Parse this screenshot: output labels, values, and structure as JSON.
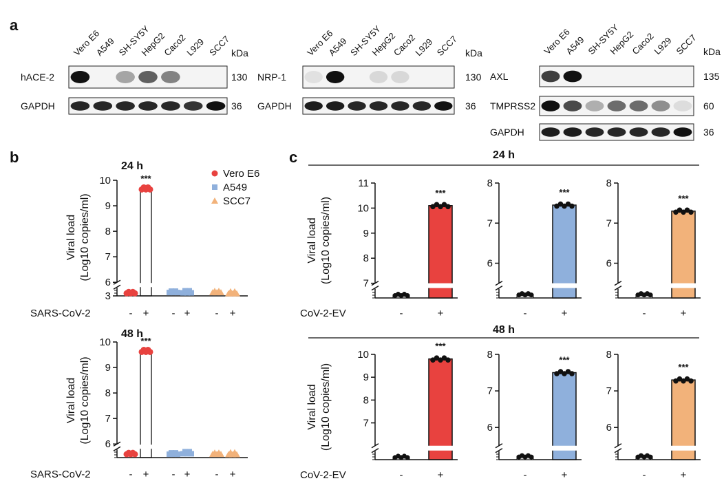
{
  "panels": {
    "a": "a",
    "b": "b",
    "c": "c"
  },
  "western_blots": [
    {
      "lanes": [
        "Vero E6",
        "A549",
        "SH-SY5Y",
        "HepG2",
        "Caco2",
        "L929",
        "SCC7"
      ],
      "kda_header": "kDa",
      "rows": [
        {
          "protein": "hACE-2",
          "kda": "130",
          "bands": [
            1.0,
            0.0,
            0.35,
            0.65,
            0.5,
            0.0,
            0.0
          ]
        },
        {
          "protein": "GAPDH",
          "kda": "36",
          "bands": [
            0.9,
            0.9,
            0.9,
            0.9,
            0.9,
            0.85,
            1.0
          ]
        }
      ]
    },
    {
      "lanes": [
        "Vero E6",
        "A549",
        "SH-SY5Y",
        "HepG2",
        "Caco2",
        "L929",
        "SCC7"
      ],
      "kda_header": "kDa",
      "rows": [
        {
          "protein": "NRP-1",
          "kda": "130",
          "bands": [
            0.08,
            1.0,
            0.0,
            0.12,
            0.12,
            0.0,
            0.0
          ]
        },
        {
          "protein": "GAPDH",
          "kda": "36",
          "bands": [
            0.95,
            0.95,
            0.9,
            0.9,
            0.9,
            0.9,
            1.0
          ]
        }
      ]
    },
    {
      "lanes": [
        "Vero E6",
        "A549",
        "SH-SY5Y",
        "HepG2",
        "Caco2",
        "L929",
        "SCC7"
      ],
      "kda_header": "kDa",
      "rows": [
        {
          "protein": "AXL",
          "kda": "135",
          "bands": [
            0.8,
            1.0,
            0.0,
            0.0,
            0.0,
            0.0,
            0.0
          ]
        },
        {
          "protein": "TMPRSS2",
          "kda": "60",
          "bands": [
            1.0,
            0.75,
            0.3,
            0.6,
            0.6,
            0.45,
            0.1
          ]
        },
        {
          "protein": "GAPDH",
          "kda": "36",
          "bands": [
            0.95,
            0.95,
            0.9,
            0.9,
            0.9,
            0.9,
            1.0
          ]
        }
      ]
    }
  ],
  "chart_data": [
    {
      "id": "b-24h",
      "type": "scatter",
      "title": "24 h",
      "ylabel": [
        "Viral load",
        "(Log10 copies/ml)"
      ],
      "x_factor_label": "SARS-CoV-2",
      "categories": [
        "-",
        "+",
        "-",
        "+",
        "-",
        "+"
      ],
      "y_axis": {
        "segment_low": [
          3,
          3.2
        ],
        "segment_high": [
          6,
          10
        ],
        "ticks": [
          3,
          6,
          7,
          8,
          9,
          10
        ],
        "broken": true
      },
      "legend": [
        "Vero E6",
        "A549",
        "SCC7"
      ],
      "series": [
        {
          "name": "Vero E6",
          "color": "#e8423f",
          "marker": "circle",
          "minus": 3.08,
          "plus": 9.68
        },
        {
          "name": "A549",
          "color": "#8fb0dc",
          "marker": "square",
          "minus": 3.1,
          "plus": 3.1
        },
        {
          "name": "SCC7",
          "color": "#f2b27a",
          "marker": "triangle",
          "minus": 3.1,
          "plus": 3.08
        }
      ],
      "significance": "***"
    },
    {
      "id": "b-48h",
      "type": "scatter",
      "title": "48 h",
      "ylabel": [
        "Viral load",
        "(Log10 copies/ml)"
      ],
      "x_factor_label": "SARS-CoV-2",
      "categories": [
        "-",
        "+",
        "-",
        "+",
        "-",
        "+"
      ],
      "y_axis": {
        "segment_low": [
          5.4,
          5.6
        ],
        "segment_high": [
          6,
          10
        ],
        "ticks": [
          6,
          7,
          8,
          9,
          10
        ],
        "broken": true
      },
      "series": [
        {
          "name": "Vero E6",
          "color": "#e8423f",
          "marker": "circle",
          "minus": 5.5,
          "plus": 9.65
        },
        {
          "name": "A549",
          "color": "#8fb0dc",
          "marker": "square",
          "minus": 5.5,
          "plus": 5.52
        },
        {
          "name": "SCC7",
          "color": "#f2b27a",
          "marker": "triangle",
          "minus": 5.5,
          "plus": 5.5
        }
      ],
      "significance": "***"
    },
    {
      "id": "c-24h-1",
      "type": "bar",
      "section_title": "24 h",
      "ylabel": [
        "Viral load",
        "(Log10 copies/ml)"
      ],
      "x_factor_label": "CoV-2-EV",
      "categories": [
        "-",
        "+"
      ],
      "y_axis": {
        "segment_low": [
          6.3,
          6.6
        ],
        "segment_high": [
          7,
          11
        ],
        "ticks": [
          7,
          8,
          9,
          10,
          11
        ],
        "broken": true
      },
      "color": "#e8423f",
      "values": [
        6.4,
        10.1
      ],
      "significance": "***"
    },
    {
      "id": "c-24h-2",
      "type": "bar",
      "x_factor_label": "",
      "categories": [
        "-",
        "+"
      ],
      "y_axis": {
        "segment_low": [
          5.2,
          5.45
        ],
        "segment_high": [
          5.5,
          8
        ],
        "ticks": [
          6,
          7,
          8
        ],
        "broken": true
      },
      "color": "#8fb0dc",
      "values": [
        5.3,
        7.45
      ],
      "significance": "***"
    },
    {
      "id": "c-24h-3",
      "type": "bar",
      "x_factor_label": "",
      "categories": [
        "-",
        "+"
      ],
      "y_axis": {
        "segment_low": [
          5.2,
          5.45
        ],
        "segment_high": [
          5.5,
          8
        ],
        "ticks": [
          6,
          7,
          8
        ],
        "broken": true
      },
      "color": "#f2b27a",
      "values": [
        5.3,
        7.3
      ],
      "significance": "***"
    },
    {
      "id": "c-48h-1",
      "type": "bar",
      "section_title": "48 h",
      "ylabel": [
        "Viral load",
        "(Log10 copies/ml)"
      ],
      "x_factor_label": "CoV-2-EV",
      "categories": [
        "-",
        "+"
      ],
      "y_axis": {
        "segment_low": [
          5.4,
          5.7
        ],
        "segment_high": [
          6,
          10
        ],
        "ticks": [
          7,
          8,
          9,
          10
        ],
        "broken": true
      },
      "color": "#e8423f",
      "values": [
        5.5,
        9.8
      ],
      "significance": "***"
    },
    {
      "id": "c-48h-2",
      "type": "bar",
      "x_factor_label": "",
      "categories": [
        "-",
        "+"
      ],
      "y_axis": {
        "segment_low": [
          5.2,
          5.45
        ],
        "segment_high": [
          5.5,
          8
        ],
        "ticks": [
          6,
          7,
          8
        ],
        "broken": true
      },
      "color": "#8fb0dc",
      "values": [
        5.3,
        7.5
      ],
      "significance": "***"
    },
    {
      "id": "c-48h-3",
      "type": "bar",
      "x_factor_label": "",
      "categories": [
        "-",
        "+"
      ],
      "y_axis": {
        "segment_low": [
          5.2,
          5.45
        ],
        "segment_high": [
          5.5,
          8
        ],
        "ticks": [
          6,
          7,
          8
        ],
        "broken": true
      },
      "color": "#f2b27a",
      "values": [
        5.3,
        7.3
      ],
      "significance": "***"
    }
  ]
}
